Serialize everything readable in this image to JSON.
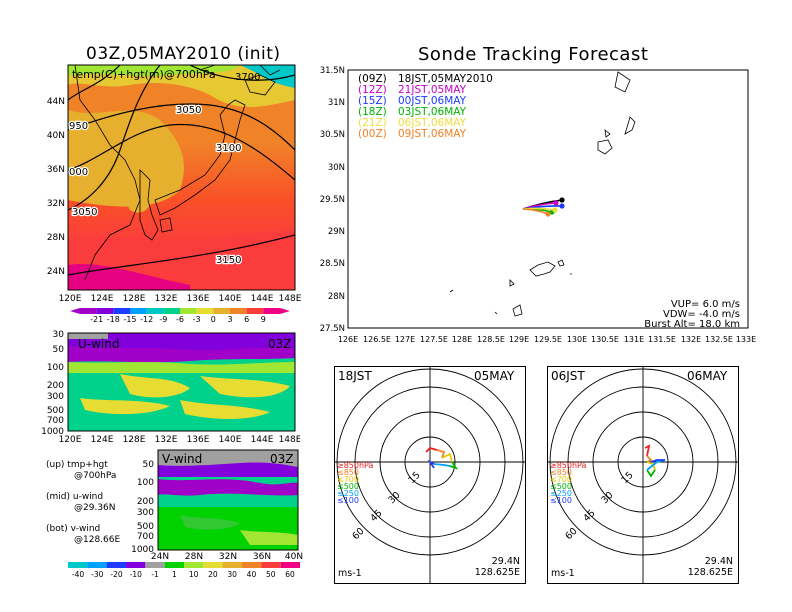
{
  "left_map": {
    "title": "03Z,05MAY2010 (init)",
    "label": "temp(C)+hgt(m)@700hPa",
    "lat_ticks": [
      "44N",
      "40N",
      "36N",
      "32N",
      "28N",
      "24N"
    ],
    "lon_ticks": [
      "120E",
      "124E",
      "128E",
      "132E",
      "136E",
      "140E",
      "144E",
      "148E"
    ],
    "contours": [
      "3050",
      "3100",
      "3150",
      "3050",
      "950",
      "000",
      "3700"
    ],
    "colorbar": [
      "-21",
      "-18",
      "-15",
      "-12",
      "-9",
      "-6",
      "-3",
      "0",
      "3",
      "6",
      "9"
    ],
    "colors": [
      "#a000c8",
      "#8200dc",
      "#1e3cff",
      "#00a0ff",
      "#00c8c8",
      "#00d28c",
      "#a0e632",
      "#e6dc32",
      "#e6af2d",
      "#f08228",
      "#fa3c3c",
      "#f00082"
    ]
  },
  "u_panel": {
    "label": "U-wind",
    "time": "03Z",
    "p_ticks": [
      "30",
      "50",
      "100",
      "200",
      "300",
      "500",
      "700",
      "1000"
    ],
    "lon_ticks": [
      "120E",
      "124E",
      "128E",
      "132E",
      "136E",
      "140E",
      "144E",
      "148E"
    ]
  },
  "v_panel": {
    "label": "V-wind",
    "time": "03Z",
    "p_ticks": [
      "50",
      "100",
      "200",
      "300",
      "500",
      "700",
      "1000"
    ],
    "lat_ticks": [
      "24N",
      "28N",
      "32N",
      "36N",
      "40N"
    ]
  },
  "notes": {
    "up1": "(up) tmp+hgt",
    "up2": "@700hPa",
    "mid1": "(mid) u-wind",
    "mid2": "@29.36N",
    "bot1": "(bot) v-wind",
    "bot2": "@128.66E"
  },
  "wind_colorbar": [
    "-40",
    "-30",
    "-20",
    "-10",
    "-1",
    "1",
    "10",
    "20",
    "30",
    "40",
    "50",
    "60"
  ],
  "track": {
    "title": "Sonde Tracking Forecast",
    "lat_ticks": [
      "31.5N",
      "31N",
      "30.5N",
      "30N",
      "29.5N",
      "29N",
      "28.5N",
      "28N",
      "27.5N"
    ],
    "lon_ticks": [
      "126E",
      "126.5E",
      "127E",
      "127.5E",
      "128E",
      "128.5E",
      "129E",
      "129.5E",
      "130E",
      "130.5E",
      "131E",
      "131.5E",
      "132E",
      "132.5E",
      "133E"
    ],
    "legend": [
      {
        "code": "(09Z)",
        "text": "18JST,05MAY2010",
        "color": "#000000"
      },
      {
        "code": "(12Z)",
        "text": "21JST,05MAY",
        "color": "#c800c8"
      },
      {
        "code": "(15Z)",
        "text": "00JST,06MAY",
        "color": "#1e3cff"
      },
      {
        "code": "(18Z)",
        "text": "03JST,06MAY",
        "color": "#00b400"
      },
      {
        "code": "(21Z)",
        "text": "06JST,06MAY",
        "color": "#f0dc3c"
      },
      {
        "code": "(00Z)",
        "text": "09JST,06MAY",
        "color": "#f08228"
      }
    ],
    "vup": "VUP= 6.0 m/s",
    "vdw": "VDW= -4.0 m/s",
    "burst": "Burst Alt= 18.0 km"
  },
  "hodo_left": {
    "time": "18JST",
    "date": "05MAY",
    "rings": [
      "15",
      "30",
      "45",
      "60"
    ],
    "legend": [
      {
        "text": "≥850hPa",
        "color": "#f01e1e"
      },
      {
        "text": "≤850",
        "color": "#f08228"
      },
      {
        "text": "≤700",
        "color": "#e6c800"
      },
      {
        "text": "≤500",
        "color": "#00b400"
      },
      {
        "text": "≤250",
        "color": "#00a0ff"
      },
      {
        "text": "≤100",
        "color": "#1e3cff"
      }
    ],
    "unit": "ms-1",
    "lat": "29.4N",
    "lon": "128.625E"
  },
  "hodo_right": {
    "time": "06JST",
    "date": "06MAY",
    "rings": [
      "15",
      "30",
      "45",
      "60"
    ],
    "unit": "ms-1",
    "lat": "29.4N",
    "lon": "128.625E"
  }
}
